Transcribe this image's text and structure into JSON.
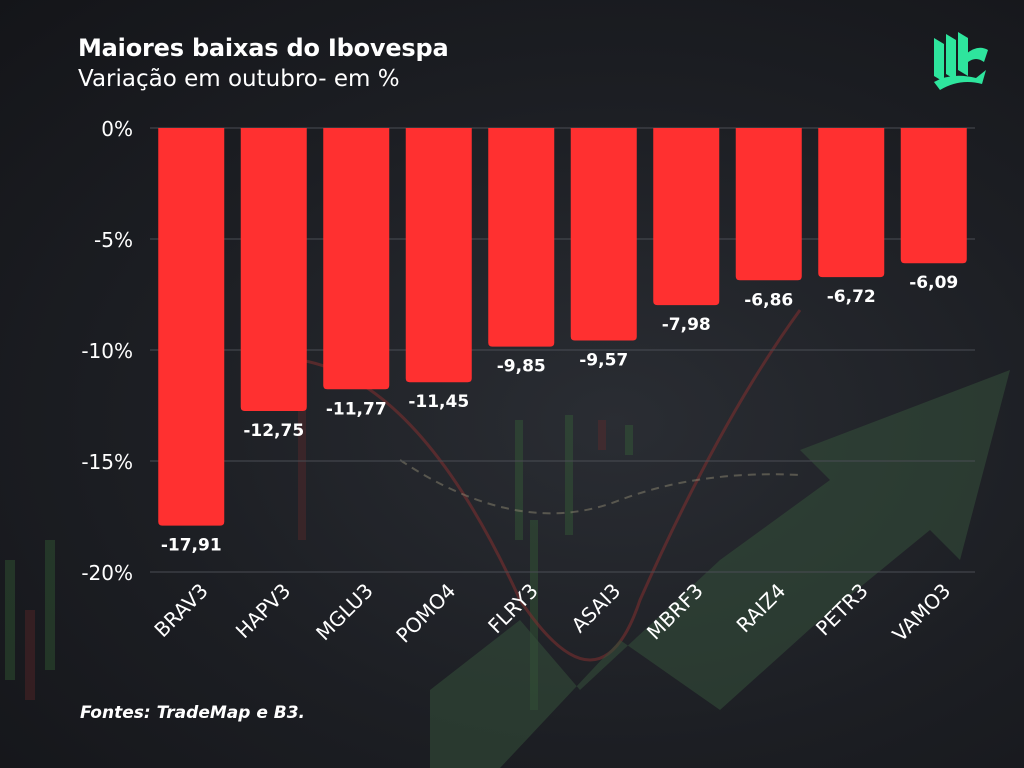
{
  "header": {
    "title": "Maiores baixas do Ibovespa",
    "subtitle": "Variação em outubro- em %"
  },
  "footer": {
    "source": "Fontes: TradeMap e B3."
  },
  "logo": {
    "icon": "book-leaves-logo-icon",
    "color": "#2ee59d"
  },
  "colors": {
    "bar": "#ff3030",
    "grid": "#4a4d54",
    "text": "#ffffff",
    "arrow": "#3c5a3c"
  },
  "chart_data": {
    "type": "bar",
    "title": "Maiores baixas do Ibovespa",
    "subtitle": "Variação em outubro- em %",
    "categories": [
      "BRAV3",
      "HAPV3",
      "MGLU3",
      "POMO4",
      "FLRY3",
      "ASAI3",
      "MBRF3",
      "RAIZ4",
      "PETR3",
      "VAMO3"
    ],
    "values": [
      -17.91,
      -12.75,
      -11.77,
      -11.45,
      -9.85,
      -9.57,
      -7.98,
      -6.86,
      -6.72,
      -6.09
    ],
    "value_labels": [
      "-17,91",
      "-12,75",
      "-11,77",
      "-11,45",
      "-9,85",
      "-9,57",
      "-7,98",
      "-6,86",
      "-6,72",
      "-6,09"
    ],
    "yticks": [
      0,
      -5,
      -10,
      -15,
      -20
    ],
    "ytick_labels": [
      "0%",
      "-5%",
      "-10%",
      "-15%",
      "-20%"
    ],
    "ylim": [
      -20,
      0
    ],
    "grid": true,
    "legend": "none"
  }
}
